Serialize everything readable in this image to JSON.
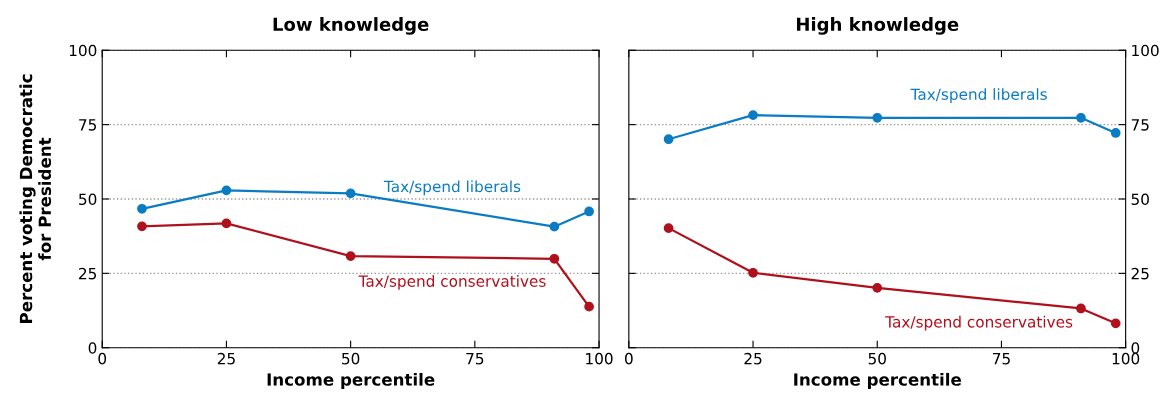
{
  "chart_data": [
    {
      "type": "line",
      "title": "Low knowledge",
      "xlabel": "Income percentile",
      "ylabel": "Percent voting Democratic\nfor President",
      "xlim": [
        0,
        100
      ],
      "xticks": [
        0,
        25,
        50,
        75,
        100
      ],
      "ylim": [
        0,
        100
      ],
      "yticks": [
        0,
        25,
        50,
        75,
        100
      ],
      "grid": "y",
      "marker": "circle",
      "line_style": "solid",
      "legend": false,
      "x": [
        8,
        25,
        50,
        91,
        98
      ],
      "series": [
        {
          "name": "Tax/spend liberals",
          "color": "#0a7cc4",
          "values": [
            46.7,
            52.9,
            51.9,
            40.7,
            45.8
          ]
        },
        {
          "name": "Tax/spend conservatives",
          "color": "#b0101c",
          "values": [
            40.8,
            41.8,
            30.8,
            29.9,
            13.8
          ]
        }
      ]
    },
    {
      "type": "line",
      "title": "High knowledge",
      "xlabel": "Income percentile",
      "xlim": [
        0,
        100
      ],
      "xticks": [
        0,
        25,
        50,
        75,
        100
      ],
      "ylim": [
        0,
        100
      ],
      "yticks": [
        0,
        25,
        50,
        75,
        100
      ],
      "grid": "y",
      "marker": "circle",
      "line_style": "solid",
      "legend": false,
      "x": [
        8,
        25,
        50,
        91,
        98
      ],
      "series": [
        {
          "name": "Tax/spend liberals",
          "color": "#0a7cc4",
          "values": [
            70.1,
            78.2,
            77.3,
            77.3,
            72.2
          ]
        },
        {
          "name": "Tax/spend conservatives",
          "color": "#b0101c",
          "values": [
            40.2,
            25.2,
            20.1,
            13.2,
            8.2
          ]
        }
      ]
    }
  ]
}
